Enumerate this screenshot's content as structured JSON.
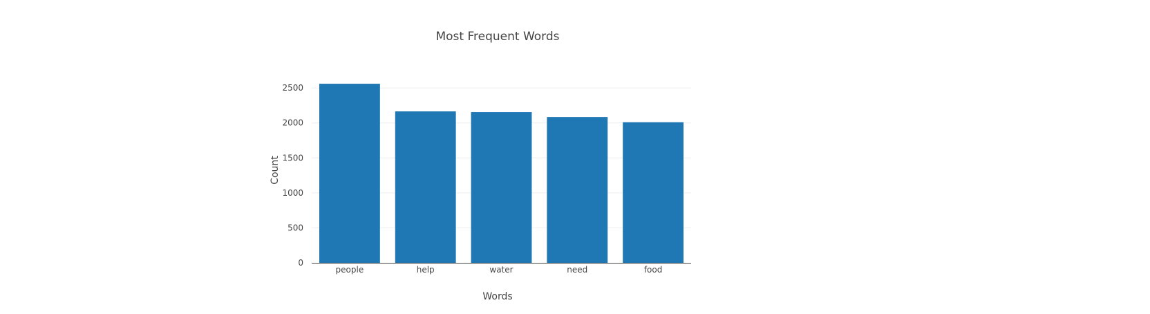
{
  "chart_data": {
    "type": "bar",
    "title": "Most Frequent Words",
    "xlabel": "Words",
    "ylabel": "Count",
    "categories": [
      "people",
      "help",
      "water",
      "need",
      "food"
    ],
    "values": [
      2560,
      2165,
      2155,
      2085,
      2010
    ],
    "ylim": [
      0,
      2650
    ],
    "yticks": [
      0,
      500,
      1000,
      1500,
      2000,
      2500
    ],
    "grid": true,
    "bar_color": "#1f77b4"
  }
}
